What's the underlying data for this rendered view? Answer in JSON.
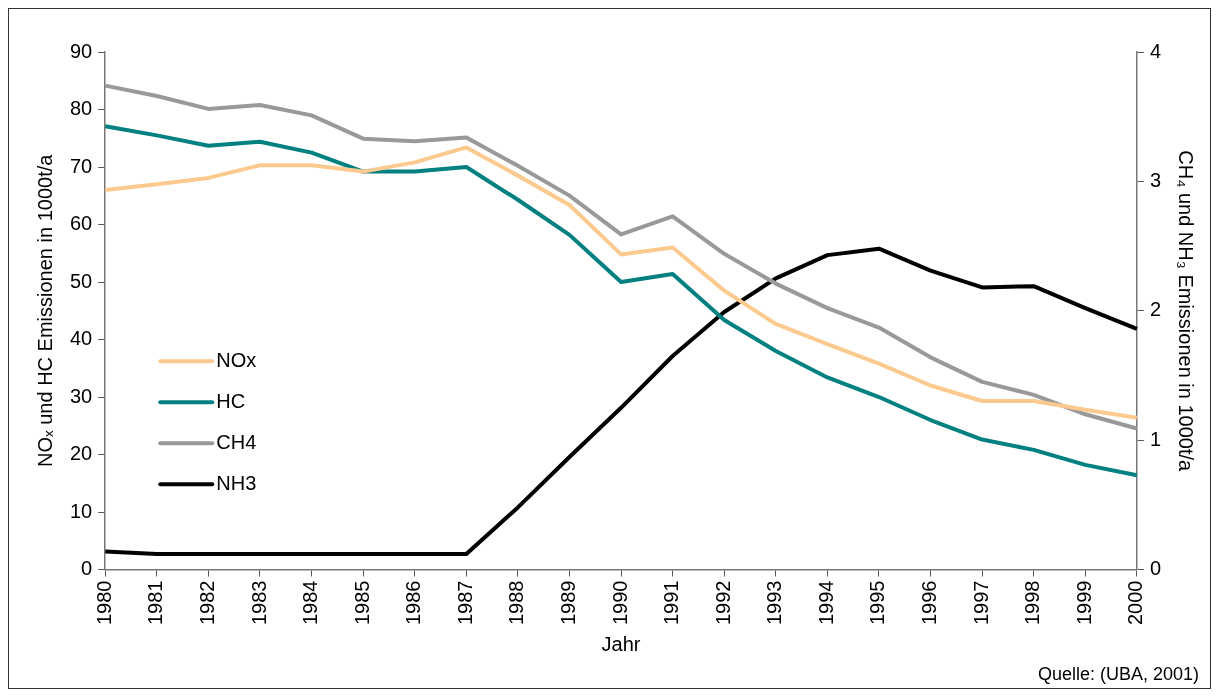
{
  "chart_data": {
    "type": "line",
    "xlabel": "Jahr",
    "ylabel": "NOₓ und HC Emissionen in 1000t/a",
    "y2label": "CH₄ und NH₃ Emissionen in 1000t/a",
    "annotations": [
      "Quelle: (UBA, 2001)"
    ],
    "categories": [
      "1980",
      "1981",
      "1982",
      "1983",
      "1984",
      "1985",
      "1986",
      "1987",
      "1988",
      "1989",
      "1990",
      "1991",
      "1992",
      "1993",
      "1994",
      "1995",
      "1996",
      "1997",
      "1998",
      "1999",
      "2000"
    ],
    "series": [
      {
        "name": "NOx",
        "color": "#fcc98f",
        "values": [
          66,
          67,
          68.1,
          70.3,
          70.3,
          69.2,
          70.8,
          73.4,
          68.5,
          63.4,
          54.8,
          56,
          48.5,
          42.7,
          39.2,
          35.8,
          32,
          29.3,
          29.3,
          27.8,
          26.4
        ]
      },
      {
        "name": "HC",
        "color": "#008080",
        "values": [
          77.1,
          75.5,
          73.7,
          74.4,
          72.5,
          69.2,
          69.2,
          70,
          64.3,
          58.2,
          50,
          51.4,
          43.4,
          38,
          33.4,
          30,
          26,
          22.6,
          20.8,
          18.2,
          16.4
        ]
      },
      {
        "name": "CH4",
        "color": "#999999",
        "axis": "y2",
        "values": [
          3.74,
          3.66,
          3.56,
          3.59,
          3.51,
          3.33,
          3.31,
          3.34,
          3.12,
          2.89,
          2.59,
          2.73,
          2.44,
          2.21,
          2.02,
          1.87,
          1.64,
          1.45,
          1.35,
          1.2,
          1.09
        ]
      },
      {
        "name": "NH3",
        "color": "#000000",
        "axis": "y2",
        "values": [
          0.14,
          0.12,
          0.12,
          0.12,
          0.12,
          0.12,
          0.12,
          0.12,
          0.48,
          0.87,
          1.25,
          1.65,
          1.99,
          2.25,
          2.43,
          2.48,
          2.31,
          2.18,
          2.19,
          2.02,
          1.86
        ]
      }
    ],
    "ylim": [
      0,
      90
    ],
    "yticks": [
      0,
      10,
      20,
      30,
      40,
      50,
      60,
      70,
      80,
      90
    ],
    "y2lim": [
      0,
      4
    ],
    "y2ticks": [
      0,
      1,
      2,
      3,
      4
    ],
    "grid": false,
    "legend": "center left",
    "marker": "none",
    "line_style": "solid"
  }
}
